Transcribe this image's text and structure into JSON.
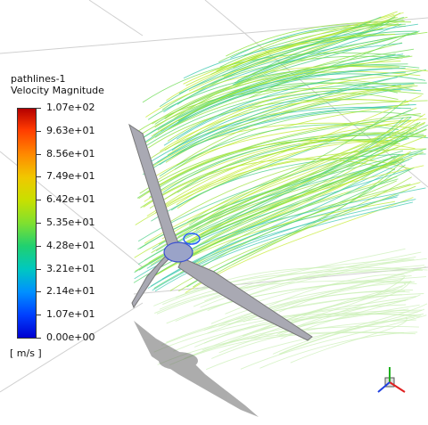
{
  "legend": {
    "title_line1": "pathlines-1",
    "title_line2": "Velocity Magnitude",
    "ticks": [
      "1.07e+02",
      "9.63e+01",
      "8.56e+01",
      "7.49e+01",
      "6.42e+01",
      "5.35e+01",
      "4.28e+01",
      "3.21e+01",
      "2.14e+01",
      "1.07e+01",
      "0.00e+00"
    ],
    "units": "[ m/s ]",
    "colormap_top": "#b40000",
    "colormap_bottom": "#0000d0"
  },
  "scene": {
    "object": "wind-turbine-pathlines",
    "background": "#ffffff"
  },
  "axis_triad": {
    "x_color": "#e02020",
    "y_color": "#20b020",
    "z_color": "#2040e0"
  }
}
